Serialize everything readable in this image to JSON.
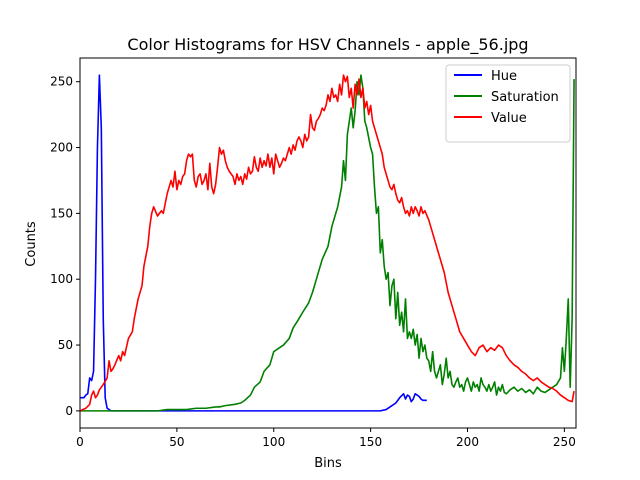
{
  "chart_data": {
    "type": "line",
    "title": "Color Histograms for HSV Channels - apple_56.jpg",
    "xlabel": "Bins",
    "ylabel": "Counts",
    "xlim": [
      0,
      256
    ],
    "ylim": [
      -13,
      268
    ],
    "xticks": [
      0,
      50,
      100,
      150,
      200,
      250
    ],
    "yticks": [
      0,
      50,
      100,
      150,
      200,
      250
    ],
    "grid": false,
    "legend_position": "top-right",
    "series": [
      {
        "name": "Hue",
        "color": "#0000ff",
        "x": [
          0,
          2,
          3,
          4,
          5,
          6,
          7,
          8,
          9,
          10,
          11,
          12,
          13,
          14,
          15,
          16,
          18,
          20,
          30,
          60,
          100,
          150,
          155,
          158,
          160,
          163,
          165,
          167,
          168,
          169,
          170,
          171,
          172,
          173,
          174,
          175,
          176,
          177,
          178,
          179
        ],
        "y": [
          10,
          10,
          12,
          13,
          25,
          23,
          30,
          100,
          200,
          255,
          215,
          70,
          10,
          2,
          1,
          0,
          0,
          0,
          0,
          0,
          0,
          0,
          0,
          1,
          3,
          6,
          10,
          13,
          9,
          12,
          11,
          7,
          9,
          13,
          12,
          11,
          9,
          8,
          8,
          8
        ]
      },
      {
        "name": "Saturation",
        "color": "#008000",
        "x": [
          0,
          10,
          20,
          30,
          40,
          45,
          50,
          52,
          55,
          60,
          62,
          65,
          70,
          72,
          75,
          80,
          83,
          85,
          88,
          90,
          93,
          95,
          98,
          100,
          103,
          105,
          108,
          110,
          113,
          115,
          118,
          120,
          122,
          125,
          128,
          130,
          132,
          133,
          135,
          136,
          137,
          138,
          139,
          140,
          141,
          142,
          143,
          144,
          145,
          146,
          147,
          148,
          150,
          151,
          152,
          153,
          154,
          155,
          156,
          157,
          158,
          159,
          160,
          161,
          162,
          163,
          164,
          165,
          166,
          167,
          168,
          169,
          170,
          171,
          172,
          173,
          174,
          175,
          176,
          177,
          178,
          179,
          180,
          181,
          182,
          183,
          184,
          185,
          186,
          187,
          188,
          189,
          190,
          191,
          192,
          193,
          194,
          195,
          196,
          197,
          198,
          199,
          200,
          201,
          202,
          203,
          204,
          205,
          206,
          207,
          208,
          209,
          210,
          211,
          212,
          213,
          214,
          215,
          216,
          217,
          218,
          219,
          220,
          222,
          224,
          226,
          228,
          230,
          232,
          234,
          236,
          238,
          240,
          242,
          244,
          246,
          248,
          249,
          250,
          251,
          252,
          253,
          254,
          255
        ],
        "y": [
          0,
          0,
          0,
          0,
          0,
          1,
          1,
          1,
          1,
          2,
          2,
          2,
          3,
          3,
          4,
          5,
          6,
          8,
          12,
          18,
          22,
          30,
          35,
          45,
          48,
          50,
          55,
          63,
          70,
          75,
          82,
          90,
          100,
          115,
          125,
          140,
          150,
          155,
          170,
          190,
          175,
          210,
          220,
          230,
          215,
          228,
          250,
          240,
          255,
          245,
          220,
          215,
          200,
          195,
          170,
          150,
          155,
          120,
          130,
          110,
          100,
          105,
          80,
          95,
          100,
          70,
          90,
          65,
          75,
          60,
          85,
          55,
          60,
          55,
          62,
          50,
          58,
          40,
          55,
          45,
          50,
          40,
          38,
          30,
          45,
          30,
          25,
          30,
          35,
          20,
          28,
          40,
          25,
          30,
          20,
          18,
          22,
          25,
          18,
          20,
          15,
          22,
          25,
          20,
          15,
          22,
          18,
          20,
          15,
          25,
          20,
          18,
          15,
          20,
          15,
          18,
          22,
          12,
          18,
          15,
          20,
          14,
          13,
          16,
          18,
          15,
          17,
          14,
          16,
          13,
          18,
          15,
          14,
          16,
          18,
          20,
          25,
          48,
          30,
          55,
          85,
          18,
          70,
          252
        ]
      },
      {
        "name": "Value",
        "color": "#ff0000",
        "x": [
          0,
          3,
          5,
          6,
          7,
          8,
          9,
          10,
          12,
          14,
          15,
          16,
          17,
          18,
          20,
          21,
          22,
          23,
          25,
          27,
          28,
          30,
          32,
          33,
          35,
          36,
          37,
          38,
          40,
          42,
          43,
          45,
          46,
          47,
          48,
          49,
          50,
          51,
          52,
          53,
          54,
          55,
          56,
          57,
          58,
          59,
          60,
          61,
          62,
          63,
          64,
          65,
          66,
          67,
          68,
          69,
          70,
          71,
          72,
          73,
          74,
          75,
          76,
          77,
          78,
          79,
          80,
          81,
          82,
          83,
          84,
          85,
          86,
          87,
          88,
          89,
          90,
          91,
          92,
          93,
          94,
          95,
          96,
          97,
          98,
          99,
          100,
          101,
          102,
          103,
          104,
          105,
          106,
          107,
          108,
          109,
          110,
          111,
          112,
          113,
          114,
          115,
          116,
          117,
          118,
          119,
          120,
          121,
          122,
          123,
          124,
          125,
          126,
          127,
          128,
          129,
          130,
          131,
          132,
          133,
          134,
          135,
          136,
          137,
          138,
          139,
          140,
          141,
          142,
          143,
          144,
          145,
          146,
          147,
          148,
          149,
          150,
          151,
          152,
          153,
          154,
          155,
          156,
          157,
          158,
          159,
          160,
          161,
          162,
          163,
          164,
          165,
          166,
          167,
          168,
          169,
          170,
          171,
          172,
          173,
          174,
          175,
          176,
          177,
          178,
          180,
          182,
          185,
          188,
          190,
          192,
          194,
          196,
          198,
          200,
          202,
          204,
          206,
          208,
          210,
          212,
          214,
          216,
          218,
          220,
          222,
          224,
          226,
          228,
          230,
          232,
          234,
          236,
          238,
          240,
          242,
          244,
          246,
          248,
          250,
          252,
          254,
          255
        ],
        "y": [
          0,
          2,
          5,
          12,
          15,
          10,
          12,
          16,
          20,
          25,
          38,
          30,
          32,
          35,
          42,
          38,
          45,
          42,
          55,
          60,
          70,
          85,
          95,
          110,
          125,
          140,
          150,
          155,
          148,
          152,
          150,
          165,
          170,
          175,
          170,
          182,
          168,
          175,
          172,
          178,
          180,
          190,
          195,
          193,
          195,
          175,
          170,
          178,
          180,
          172,
          175,
          180,
          168,
          188,
          170,
          165,
          172,
          185,
          200,
          195,
          198,
          190,
          185,
          182,
          180,
          178,
          172,
          180,
          175,
          178,
          172,
          180,
          176,
          185,
          180,
          182,
          193,
          185,
          182,
          192,
          185,
          190,
          186,
          195,
          185,
          192,
          180,
          195,
          190,
          185,
          188,
          192,
          190,
          195,
          200,
          195,
          202,
          198,
          205,
          208,
          205,
          200,
          210,
          205,
          208,
          225,
          215,
          213,
          220,
          222,
          225,
          230,
          228,
          232,
          240,
          235,
          245,
          238,
          240,
          235,
          248,
          240,
          255,
          250,
          254,
          238,
          245,
          230,
          248,
          240,
          252,
          238,
          245,
          230,
          235,
          225,
          232,
          220,
          215,
          210,
          205,
          200,
          195,
          185,
          180,
          175,
          170,
          168,
          172,
          165,
          160,
          158,
          162,
          155,
          150,
          152,
          148,
          155,
          150,
          155,
          152,
          148,
          155,
          150,
          152,
          145,
          135,
          120,
          105,
          90,
          80,
          70,
          60,
          55,
          50,
          45,
          42,
          48,
          50,
          45,
          48,
          46,
          50,
          48,
          42,
          38,
          35,
          33,
          30,
          28,
          25,
          23,
          25,
          22,
          20,
          18,
          17,
          15,
          12,
          10,
          8,
          7,
          15
        ]
      }
    ]
  }
}
